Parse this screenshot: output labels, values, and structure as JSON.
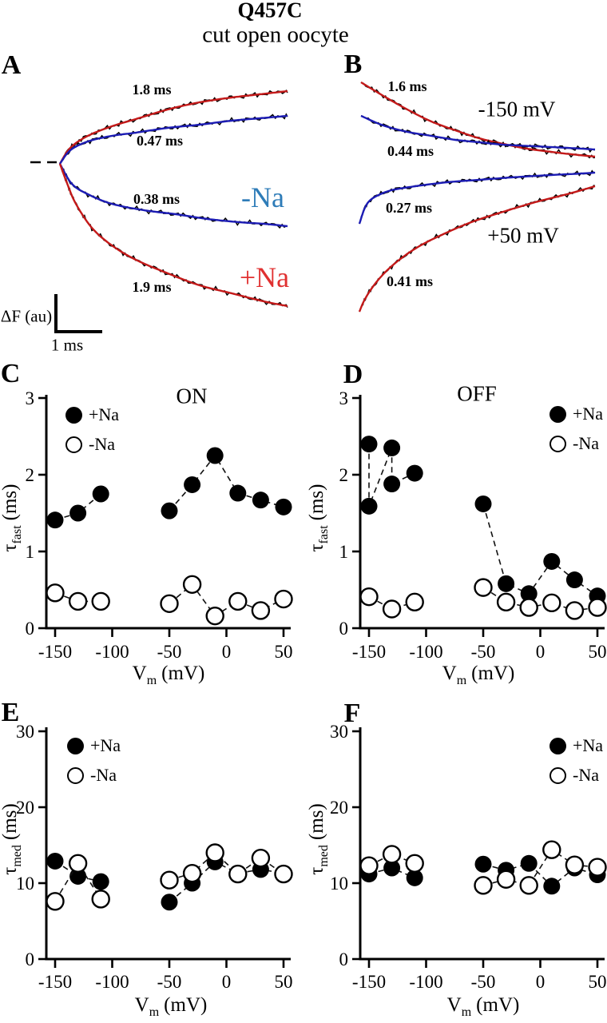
{
  "header": {
    "title": "Q457C",
    "subtitle": "cut open oocyte"
  },
  "legend": {
    "plus": "+Na",
    "minus": "-Na"
  },
  "axis": {
    "tau": "τ",
    "fast": "fast",
    "med": "med",
    "ms": "(ms)",
    "v": "V",
    "m": "m",
    "mv": "(mV)"
  },
  "panel_a": {
    "letter": "A",
    "labels": {
      "tau_top_red": "1.8 ms",
      "tau_top_blue": "0.47 ms",
      "tau_bot_blue": "0.38 ms",
      "tau_bot_red": "1.9 ms",
      "minus_na": "-Na",
      "plus_na": "+Na",
      "scale_y": "ΔF (au)",
      "scale_x": "1 ms",
      "minus_na_color": "#2e7cb8",
      "plus_na_color": "#e03030"
    },
    "traces": [
      {
        "name": "a-on-plus-na-fit",
        "color": "#c41a1a",
        "noisy": true,
        "points": [
          [
            75,
            205
          ],
          [
            88,
            185
          ],
          [
            110,
            170
          ],
          [
            140,
            158
          ],
          [
            170,
            149
          ],
          [
            210,
            137
          ],
          [
            250,
            128
          ],
          [
            290,
            122
          ],
          [
            325,
            118
          ],
          [
            360,
            114
          ]
        ]
      },
      {
        "name": "a-on-minus-na-fit",
        "color": "#1c1cb4",
        "noisy": true,
        "points": [
          [
            75,
            205
          ],
          [
            88,
            188
          ],
          [
            110,
            177
          ],
          [
            140,
            170
          ],
          [
            170,
            166
          ],
          [
            210,
            160
          ],
          [
            250,
            156
          ],
          [
            290,
            151
          ],
          [
            325,
            148
          ],
          [
            360,
            145
          ]
        ]
      },
      {
        "name": "a-off-minus-na-fit",
        "color": "#1c1cb4",
        "noisy": true,
        "points": [
          [
            75,
            205
          ],
          [
            90,
            230
          ],
          [
            110,
            243
          ],
          [
            140,
            255
          ],
          [
            180,
            263
          ],
          [
            220,
            268
          ],
          [
            260,
            274
          ],
          [
            300,
            278
          ],
          [
            330,
            280
          ],
          [
            360,
            283
          ]
        ]
      },
      {
        "name": "a-off-plus-na-fit",
        "color": "#c41a1a",
        "noisy": true,
        "points": [
          [
            75,
            205
          ],
          [
            85,
            232
          ],
          [
            95,
            255
          ],
          [
            115,
            285
          ],
          [
            140,
            307
          ],
          [
            170,
            325
          ],
          [
            210,
            342
          ],
          [
            250,
            357
          ],
          [
            290,
            367
          ],
          [
            330,
            377
          ],
          [
            360,
            383
          ]
        ]
      }
    ]
  },
  "panel_b": {
    "letter": "B",
    "labels": {
      "tau_top_red": "1.6 ms",
      "tau_top_blue": "0.44 ms",
      "tau_bot_blue": "0.27 ms",
      "tau_bot_red": "0.41 ms",
      "v_top": "-150 mV",
      "v_bot": "+50 mV"
    },
    "traces": [
      {
        "name": "b-minus150-plus-na-fit",
        "color": "#c41a1a",
        "noisy": true,
        "points": [
          [
            452,
            103
          ],
          [
            480,
            120
          ],
          [
            510,
            137
          ],
          [
            540,
            152
          ],
          [
            570,
            163
          ],
          [
            600,
            173
          ],
          [
            630,
            180
          ],
          [
            660,
            186
          ],
          [
            690,
            190
          ],
          [
            715,
            193
          ],
          [
            745,
            196
          ]
        ]
      },
      {
        "name": "b-minus150-minus-na-fit",
        "color": "#1c1cb4",
        "noisy": true,
        "points": [
          [
            452,
            145
          ],
          [
            480,
            157
          ],
          [
            510,
            165
          ],
          [
            540,
            170
          ],
          [
            570,
            175
          ],
          [
            600,
            178
          ],
          [
            630,
            181
          ],
          [
            670,
            183
          ],
          [
            710,
            185
          ],
          [
            745,
            187
          ]
        ]
      },
      {
        "name": "b-plus50-minus-na-fit",
        "color": "#1c1cb4",
        "noisy": true,
        "points": [
          [
            450,
            280
          ],
          [
            456,
            262
          ],
          [
            462,
            252
          ],
          [
            472,
            245
          ],
          [
            490,
            238
          ],
          [
            520,
            233
          ],
          [
            560,
            228
          ],
          [
            600,
            225
          ],
          [
            640,
            222
          ],
          [
            690,
            219
          ],
          [
            730,
            217
          ],
          [
            745,
            216
          ]
        ]
      },
      {
        "name": "b-plus50-plus-na-fit",
        "color": "#c41a1a",
        "noisy": true,
        "points": [
          [
            450,
            390
          ],
          [
            456,
            376
          ],
          [
            466,
            360
          ],
          [
            480,
            343
          ],
          [
            500,
            325
          ],
          [
            525,
            308
          ],
          [
            555,
            293
          ],
          [
            590,
            278
          ],
          [
            630,
            265
          ],
          [
            670,
            253
          ],
          [
            710,
            243
          ],
          [
            745,
            233
          ]
        ]
      }
    ]
  },
  "chart_data": [
    {
      "panel": "C",
      "type": "scatter",
      "title": "ON",
      "xlabel": "Vm (mV)",
      "ylabel": "tau_fast (ms)",
      "xlim": [
        -160,
        55
      ],
      "ylim": [
        0,
        3
      ],
      "x_ticks": [
        -150,
        -100,
        -50,
        0,
        50
      ],
      "y_ticks": [
        0,
        1,
        2,
        3
      ],
      "series": [
        {
          "name": "+Na",
          "marker": "filled",
          "clusters": [
            [
              [
                -150,
                1.41
              ],
              [
                -130,
                1.5
              ],
              [
                -110,
                1.75
              ]
            ],
            [
              [
                -50,
                1.53
              ],
              [
                -30,
                1.87
              ],
              [
                -10,
                2.25
              ],
              [
                10,
                1.76
              ],
              [
                30,
                1.67
              ],
              [
                50,
                1.58
              ]
            ]
          ]
        },
        {
          "name": "-Na",
          "marker": "open",
          "clusters": [
            [
              [
                -150,
                0.46
              ],
              [
                -130,
                0.35
              ],
              [
                -110,
                0.35
              ]
            ],
            [
              [
                -50,
                0.32
              ],
              [
                -30,
                0.57
              ],
              [
                -10,
                0.16
              ],
              [
                10,
                0.35
              ],
              [
                30,
                0.23
              ],
              [
                50,
                0.38
              ]
            ]
          ]
        }
      ]
    },
    {
      "panel": "D",
      "type": "scatter",
      "title": "OFF",
      "xlabel": "Vm (mV)",
      "ylabel": "tau_fast (ms)",
      "xlim": [
        -160,
        55
      ],
      "ylim": [
        0,
        3
      ],
      "x_ticks": [
        -150,
        -100,
        -50,
        0,
        50
      ],
      "y_ticks": [
        0,
        1,
        2,
        3
      ],
      "series": [
        {
          "name": "+Na",
          "marker": "filled",
          "clusters": [
            [
              [
                -150,
                2.4
              ],
              [
                -150,
                1.59
              ],
              [
                -130,
                2.35
              ],
              [
                -130,
                1.88
              ],
              [
                -110,
                2.02
              ]
            ],
            [
              [
                -50,
                1.62
              ],
              [
                -30,
                0.58
              ],
              [
                -10,
                0.45
              ],
              [
                10,
                0.87
              ],
              [
                30,
                0.63
              ],
              [
                50,
                0.42
              ]
            ]
          ]
        },
        {
          "name": "-Na",
          "marker": "open",
          "clusters": [
            [
              [
                -150,
                0.41
              ],
              [
                -130,
                0.25
              ],
              [
                -110,
                0.34
              ]
            ],
            [
              [
                -50,
                0.53
              ],
              [
                -30,
                0.34
              ],
              [
                -10,
                0.27
              ],
              [
                10,
                0.33
              ],
              [
                30,
                0.23
              ],
              [
                50,
                0.27
              ]
            ]
          ]
        }
      ]
    },
    {
      "panel": "E",
      "type": "scatter",
      "title": "",
      "xlabel": "Vm (mV)",
      "ylabel": "tau_med (ms)",
      "xlim": [
        -160,
        55
      ],
      "ylim": [
        0,
        30
      ],
      "x_ticks": [
        -150,
        -100,
        -50,
        0,
        50
      ],
      "y_ticks": [
        0,
        10,
        20,
        30
      ],
      "series": [
        {
          "name": "+Na",
          "marker": "filled",
          "clusters": [
            [
              [
                -150,
                12.9
              ],
              [
                -130,
                10.9
              ],
              [
                -110,
                10.2
              ]
            ],
            [
              [
                -50,
                7.5
              ],
              [
                -30,
                10.0
              ],
              [
                -10,
                12.8
              ],
              [
                10,
                11.3
              ],
              [
                30,
                11.8
              ],
              [
                50,
                11.3
              ]
            ]
          ]
        },
        {
          "name": "-Na",
          "marker": "open",
          "clusters": [
            [
              [
                -150,
                7.6
              ],
              [
                -130,
                12.6
              ],
              [
                -110,
                7.9
              ]
            ],
            [
              [
                -50,
                10.4
              ],
              [
                -30,
                11.3
              ],
              [
                -10,
                14.0
              ],
              [
                10,
                11.2
              ],
              [
                30,
                13.3
              ],
              [
                50,
                11.2
              ]
            ]
          ]
        }
      ]
    },
    {
      "panel": "F",
      "type": "scatter",
      "title": "",
      "xlabel": "Vm (mV)",
      "ylabel": "tau_med (ms)",
      "xlim": [
        -160,
        55
      ],
      "ylim": [
        0,
        30
      ],
      "x_ticks": [
        -150,
        -100,
        -50,
        0,
        50
      ],
      "y_ticks": [
        0,
        10,
        20,
        30
      ],
      "series": [
        {
          "name": "+Na",
          "marker": "filled",
          "clusters": [
            [
              [
                -150,
                11.2
              ],
              [
                -130,
                12.0
              ],
              [
                -110,
                10.7
              ]
            ],
            [
              [
                -50,
                12.5
              ],
              [
                -30,
                11.7
              ],
              [
                -10,
                12.6
              ],
              [
                10,
                9.6
              ],
              [
                30,
                12.0
              ],
              [
                50,
                11.1
              ]
            ]
          ]
        },
        {
          "name": "-Na",
          "marker": "open",
          "clusters": [
            [
              [
                -150,
                12.3
              ],
              [
                -130,
                13.8
              ],
              [
                -110,
                12.6
              ]
            ],
            [
              [
                -50,
                9.7
              ],
              [
                -30,
                10.5
              ],
              [
                -10,
                9.7
              ],
              [
                10,
                14.4
              ],
              [
                30,
                12.4
              ],
              [
                50,
                12.1
              ]
            ]
          ]
        }
      ]
    }
  ],
  "panel_letters": {
    "c": "C",
    "d": "D",
    "e": "E",
    "f": "F"
  }
}
